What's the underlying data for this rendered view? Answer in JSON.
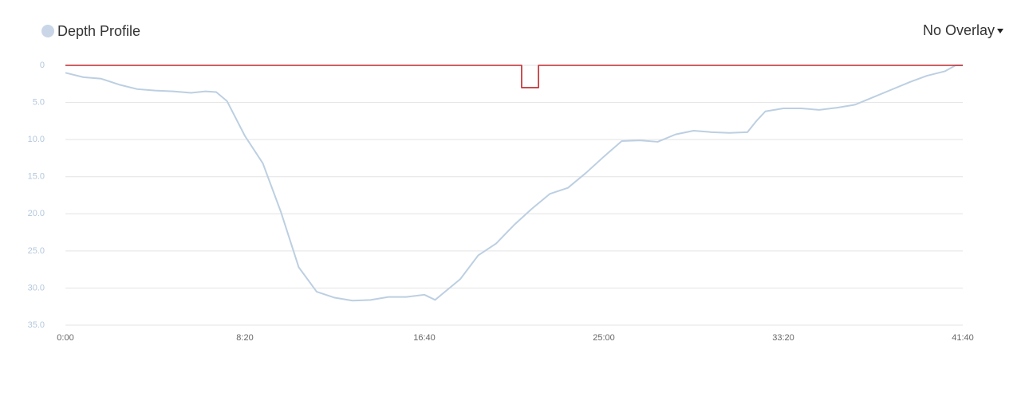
{
  "chart_data": {
    "type": "line",
    "legend_label": "Depth Profile",
    "overlay_menu": "No Overlay",
    "legend_position": "top-left",
    "y_inverted": true,
    "grid": true,
    "xlim": [
      0,
      2500
    ],
    "xticks": [
      {
        "value": 0,
        "label": "0:00"
      },
      {
        "value": 500,
        "label": "8:20"
      },
      {
        "value": 1000,
        "label": "16:40"
      },
      {
        "value": 1500,
        "label": "25:00"
      },
      {
        "value": 2000,
        "label": "33:20"
      },
      {
        "value": 2500,
        "label": "41:40"
      }
    ],
    "ylim": [
      0,
      35
    ],
    "yticks": [
      0,
      {
        "value": 5,
        "label": "5.0"
      },
      {
        "value": 10,
        "label": "10.0"
      },
      {
        "value": 15,
        "label": "15.0"
      },
      {
        "value": 20,
        "label": "20.0"
      },
      {
        "value": 25,
        "label": "25.0"
      },
      {
        "value": 30,
        "label": "30.0"
      },
      {
        "value": 35,
        "label": "35.0"
      }
    ],
    "series": [
      {
        "name": "Depth Profile",
        "color": "#bccfe2",
        "x": [
          0,
          50,
          100,
          150,
          200,
          250,
          300,
          350,
          390,
          420,
          450,
          500,
          550,
          600,
          650,
          700,
          750,
          800,
          850,
          900,
          950,
          1000,
          1030,
          1050,
          1100,
          1150,
          1200,
          1250,
          1300,
          1350,
          1400,
          1450,
          1500,
          1550,
          1600,
          1650,
          1700,
          1750,
          1800,
          1850,
          1900,
          1925,
          1950,
          2000,
          2050,
          2100,
          2150,
          2200,
          2250,
          2300,
          2350,
          2400,
          2450,
          2480,
          2500
        ],
        "values": [
          1.0,
          1.6,
          1.8,
          2.6,
          3.2,
          3.4,
          3.5,
          3.7,
          3.5,
          3.6,
          4.8,
          9.5,
          13.2,
          19.7,
          27.2,
          30.5,
          31.3,
          31.7,
          31.6,
          31.2,
          31.2,
          30.9,
          31.6,
          30.8,
          28.8,
          25.6,
          24.0,
          21.5,
          19.3,
          17.3,
          16.5,
          14.5,
          12.3,
          10.2,
          10.1,
          10.3,
          9.3,
          8.8,
          9.0,
          9.1,
          9.0,
          7.5,
          6.2,
          5.8,
          5.8,
          6.0,
          5.7,
          5.3,
          4.3,
          3.3,
          2.3,
          1.4,
          0.8,
          0,
          0
        ]
      },
      {
        "color": "#c0282d",
        "x": [
          0,
          1271,
          1271,
          1318,
          1318,
          2500
        ],
        "values": [
          0,
          0,
          3,
          3,
          0,
          0
        ]
      }
    ]
  }
}
